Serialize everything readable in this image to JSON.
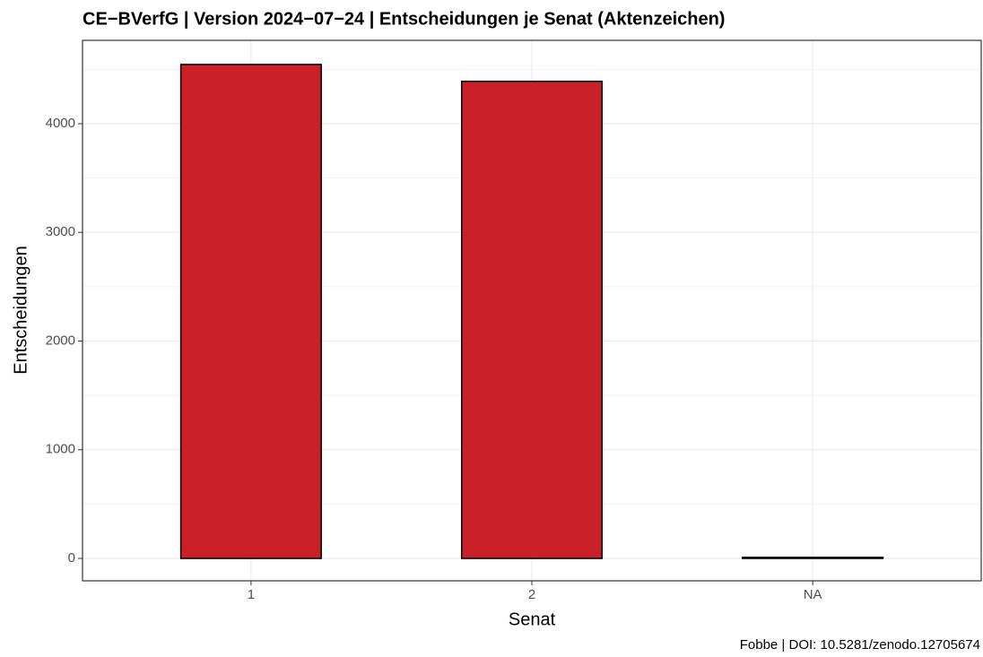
{
  "chart_data": {
    "type": "bar",
    "title": "CE−BVerfG | Version 2024−07−24 | Entscheidungen je Senat (Aktenzeichen)",
    "x_label": "Senat",
    "y_label": "Entscheidungen",
    "caption": "Fobbe | DOI: 10.5281/zenodo.12705674",
    "categories": [
      "1",
      "2",
      "NA"
    ],
    "values": [
      4545,
      4390,
      10
    ],
    "color": "#ca2129",
    "ylim": [
      -206,
      4767
    ],
    "yticks": [
      0,
      1000,
      2000,
      3000,
      4000
    ],
    "grid": true,
    "minor_grid": true
  }
}
